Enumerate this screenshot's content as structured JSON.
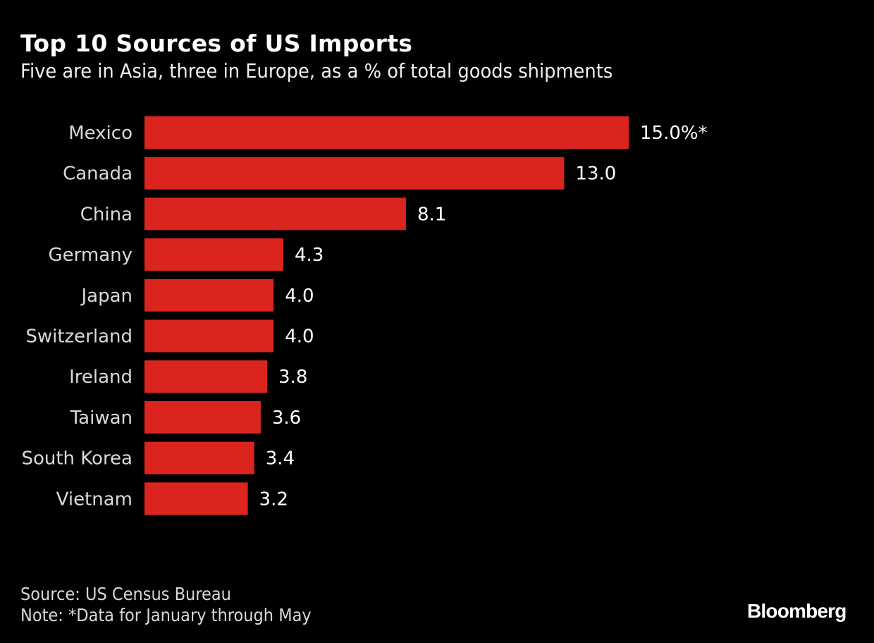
{
  "chart_data": {
    "type": "bar",
    "orientation": "horizontal",
    "title": "Top 10 Sources of US Imports",
    "subtitle": "Five are in Asia, three in Europe, as a % of total goods shipments",
    "categories": [
      "Mexico",
      "Canada",
      "China",
      "Germany",
      "Japan",
      "Switzerland",
      "Ireland",
      "Taiwan",
      "South Korea",
      "Vietnam"
    ],
    "values": [
      15.0,
      13.0,
      8.1,
      4.3,
      4.0,
      4.0,
      3.8,
      3.6,
      3.4,
      3.2
    ],
    "data_labels": [
      "15.0%*",
      "13.0",
      "8.1",
      "4.3",
      "4.0",
      "4.0",
      "3.8",
      "3.6",
      "3.4",
      "3.2"
    ],
    "xlim": [
      0,
      15.0
    ],
    "grid": false,
    "bar_color": "#dc241f",
    "background": "#000000"
  },
  "footer": {
    "source": "Source: US Census Bureau",
    "note": "Note: *Data for January through May",
    "logo": "Bloomberg"
  }
}
